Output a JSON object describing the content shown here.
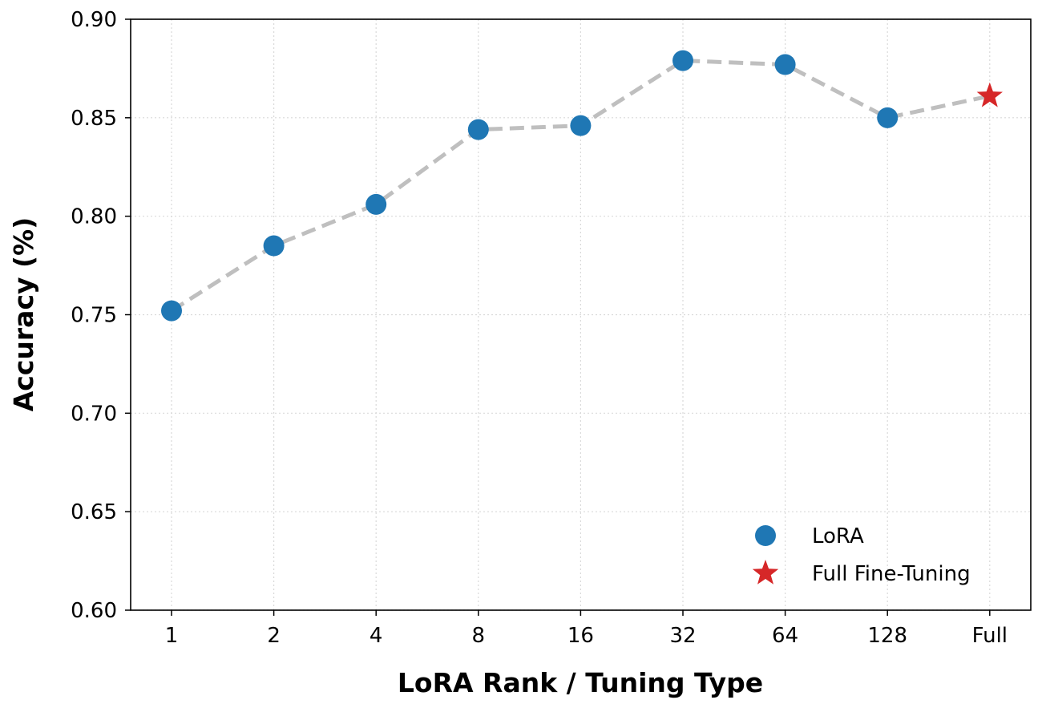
{
  "chart_data": {
    "type": "line",
    "categories": [
      "1",
      "2",
      "4",
      "8",
      "16",
      "32",
      "64",
      "128",
      "Full"
    ],
    "series": [
      {
        "name": "LoRA",
        "marker": "circle",
        "color": "#1f77b4",
        "x": [
          "1",
          "2",
          "4",
          "8",
          "16",
          "32",
          "64",
          "128"
        ],
        "values": [
          0.752,
          0.785,
          0.806,
          0.844,
          0.846,
          0.879,
          0.877,
          0.85
        ]
      },
      {
        "name": "Full Fine-Tuning",
        "marker": "star",
        "color": "#d62728",
        "x": [
          "Full"
        ],
        "values": [
          0.861
        ]
      }
    ],
    "connector_line": {
      "style": "dashed",
      "color": "#bfbfbf"
    },
    "xlabel": "LoRA Rank / Tuning Type",
    "ylabel": "Accuracy (%)",
    "ylim": [
      0.6,
      0.9
    ],
    "yticks": [
      "0.60",
      "0.65",
      "0.70",
      "0.75",
      "0.80",
      "0.85",
      "0.90"
    ],
    "grid": true,
    "legend_position": "lower-right"
  }
}
